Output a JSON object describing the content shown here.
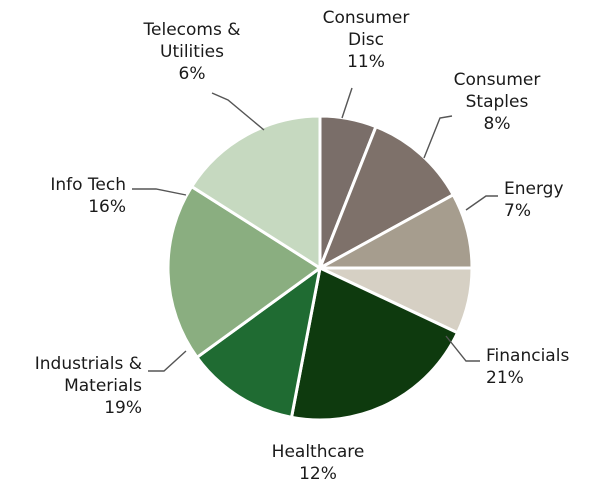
{
  "chart_data": {
    "type": "pie",
    "title": "",
    "legend": "none",
    "start_angle_deg": 0,
    "direction": "clockwise",
    "slices": [
      {
        "label": [
          "Energy"
        ],
        "value": 7,
        "value_label": "7%",
        "color": "#d6d0c4"
      },
      {
        "label": [
          "Financials"
        ],
        "value": 21,
        "value_label": "21%",
        "color": "#0e3a0e"
      },
      {
        "label": [
          "Healthcare"
        ],
        "value": 12,
        "value_label": "12%",
        "color": "#1f6b32"
      },
      {
        "label": [
          "Industrials &",
          "Materials"
        ],
        "value": 19,
        "value_label": "19%",
        "color": "#8aae80"
      },
      {
        "label": [
          "Info Tech"
        ],
        "value": 16,
        "value_label": "16%",
        "color": "#c6d9c0"
      },
      {
        "label": [
          "Telecoms &",
          "Utilities"
        ],
        "value": 6,
        "value_label": "6%",
        "color": "#7a6e69"
      },
      {
        "label": [
          "Consumer",
          "Disc"
        ],
        "value": 11,
        "value_label": "11%",
        "color": "#7e716a"
      },
      {
        "label": [
          "Consumer",
          "Staples"
        ],
        "value": 8,
        "value_label": "8%",
        "color": "#a69d8e"
      }
    ]
  }
}
